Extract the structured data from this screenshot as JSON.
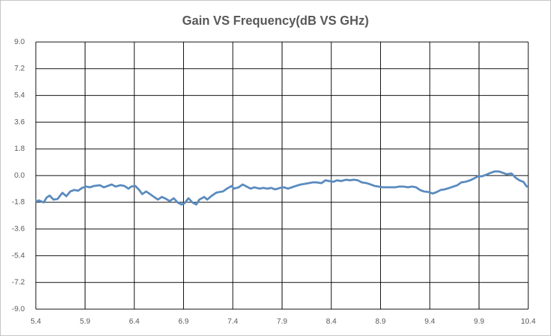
{
  "chart_data": {
    "type": "line",
    "title": "Gain VS Frequency(dB VS GHz)",
    "xlim": [
      5.4,
      10.4
    ],
    "xticks": [
      5.4,
      5.9,
      6.4,
      6.9,
      7.4,
      7.9,
      8.4,
      8.9,
      9.4,
      9.9,
      10.4
    ],
    "ylim": [
      -9,
      9
    ],
    "yticks": [
      {
        "value": 9,
        "label": "9.0"
      },
      7.2,
      5.4,
      3.6,
      1.8,
      {
        "value": 0,
        "label": "0.0"
      },
      -1.8,
      -3.6,
      -5.4,
      -7.2,
      {
        "value": -9,
        "label": "-9.0"
      }
    ],
    "grid": true,
    "series": [
      {
        "color": "#5b8bbf",
        "x": [
          5.4,
          5.43,
          5.48,
          5.51,
          5.54,
          5.58,
          5.62,
          5.67,
          5.71,
          5.75,
          5.79,
          5.83,
          5.87,
          5.91,
          5.95,
          5.99,
          6.05,
          6.09,
          6.13,
          6.17,
          6.21,
          6.26,
          6.3,
          6.34,
          6.37,
          6.41,
          6.45,
          6.48,
          6.52,
          6.56,
          6.6,
          6.64,
          6.68,
          6.71,
          6.76,
          6.8,
          6.84,
          6.88,
          6.91,
          6.95,
          6.99,
          7.03,
          7.06,
          7.11,
          7.14,
          7.18,
          7.23,
          7.26,
          7.3,
          7.34,
          7.39,
          7.41,
          7.46,
          7.5,
          7.54,
          7.58,
          7.62,
          7.67,
          7.71,
          7.75,
          7.79,
          7.83,
          7.88,
          7.92,
          7.96,
          8.0,
          8.04,
          8.09,
          8.13,
          8.17,
          8.21,
          8.25,
          8.3,
          8.34,
          8.38,
          8.42,
          8.46,
          8.5,
          8.55,
          8.59,
          8.63,
          8.67,
          8.71,
          8.76,
          8.8,
          8.84,
          8.88,
          8.92,
          8.97,
          9.01,
          9.05,
          9.09,
          9.13,
          9.18,
          9.22,
          9.26,
          9.3,
          9.34,
          9.39,
          9.43,
          9.47,
          9.51,
          9.55,
          9.6,
          9.64,
          9.68,
          9.72,
          9.76,
          9.81,
          9.85,
          9.89,
          9.93,
          9.97,
          10.02,
          10.06,
          10.1,
          10.14,
          10.18,
          10.23,
          10.27,
          10.31,
          10.35,
          10.39
        ],
        "values": [
          -1.76,
          -1.67,
          -1.81,
          -1.48,
          -1.35,
          -1.62,
          -1.58,
          -1.16,
          -1.39,
          -1.07,
          -0.97,
          -1.02,
          -0.83,
          -0.74,
          -0.79,
          -0.7,
          -0.65,
          -0.79,
          -0.7,
          -0.6,
          -0.74,
          -0.65,
          -0.7,
          -0.88,
          -0.74,
          -0.7,
          -0.97,
          -1.25,
          -1.07,
          -1.25,
          -1.44,
          -1.62,
          -1.44,
          -1.53,
          -1.72,
          -1.53,
          -1.81,
          -1.95,
          -1.86,
          -1.53,
          -1.81,
          -1.95,
          -1.62,
          -1.44,
          -1.62,
          -1.39,
          -1.16,
          -1.11,
          -1.07,
          -0.88,
          -0.7,
          -0.88,
          -0.79,
          -0.6,
          -0.74,
          -0.88,
          -0.79,
          -0.88,
          -0.83,
          -0.88,
          -0.83,
          -0.93,
          -0.83,
          -0.79,
          -0.88,
          -0.79,
          -0.7,
          -0.6,
          -0.56,
          -0.51,
          -0.46,
          -0.46,
          -0.51,
          -0.32,
          -0.37,
          -0.42,
          -0.32,
          -0.37,
          -0.28,
          -0.32,
          -0.28,
          -0.32,
          -0.46,
          -0.51,
          -0.6,
          -0.7,
          -0.74,
          -0.79,
          -0.79,
          -0.79,
          -0.79,
          -0.74,
          -0.74,
          -0.79,
          -0.74,
          -0.79,
          -0.97,
          -1.07,
          -1.11,
          -1.21,
          -1.11,
          -0.97,
          -0.93,
          -0.83,
          -0.74,
          -0.65,
          -0.46,
          -0.42,
          -0.32,
          -0.19,
          -0.05,
          -0.05,
          0.05,
          0.19,
          0.28,
          0.28,
          0.19,
          0.09,
          0.14,
          -0.14,
          -0.32,
          -0.42,
          -0.79
        ]
      }
    ]
  }
}
